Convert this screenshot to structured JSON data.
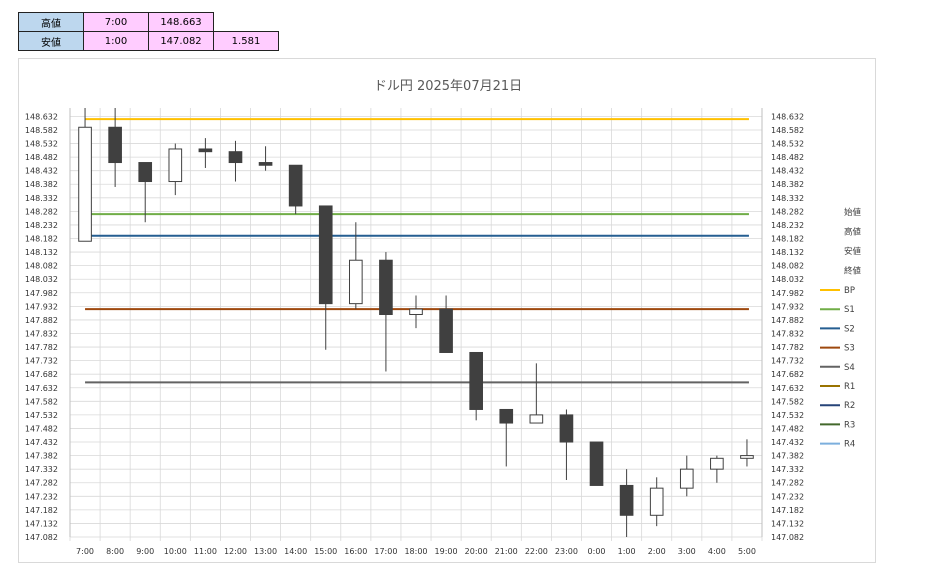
{
  "info_table": {
    "rows": [
      {
        "label": "高値",
        "time": "7:00",
        "price": "148.663",
        "extra": ""
      },
      {
        "label": "安値",
        "time": "1:00",
        "price": "147.082",
        "extra": "1.581"
      }
    ]
  },
  "chart_data": {
    "type": "candlestick",
    "title": "ドル円  2025年07月21日",
    "x": [
      "7:00",
      "8:00",
      "9:00",
      "10:00",
      "11:00",
      "12:00",
      "13:00",
      "14:00",
      "15:00",
      "16:00",
      "17:00",
      "18:00",
      "19:00",
      "20:00",
      "21:00",
      "22:00",
      "23:00",
      "0:00",
      "1:00",
      "2:00",
      "3:00",
      "4:00",
      "5:00"
    ],
    "ylim": [
      147.082,
      148.663
    ],
    "y_ticks": [
      "148.632",
      "148.582",
      "148.532",
      "148.482",
      "148.432",
      "148.382",
      "148.332",
      "148.282",
      "148.232",
      "148.182",
      "148.132",
      "148.082",
      "148.032",
      "147.982",
      "147.932",
      "147.882",
      "147.832",
      "147.782",
      "147.732",
      "147.682",
      "147.632",
      "147.582",
      "147.532",
      "147.482",
      "147.432",
      "147.382",
      "147.332",
      "147.282",
      "147.232",
      "147.182",
      "147.132",
      "147.082"
    ],
    "candles": [
      {
        "o": 148.172,
        "h": 148.663,
        "l": 148.172,
        "c": 148.592
      },
      {
        "o": 148.592,
        "h": 148.663,
        "l": 148.372,
        "c": 148.462
      },
      {
        "o": 148.462,
        "h": 148.462,
        "l": 148.242,
        "c": 148.392
      },
      {
        "o": 148.392,
        "h": 148.532,
        "l": 148.342,
        "c": 148.512
      },
      {
        "o": 148.512,
        "h": 148.552,
        "l": 148.442,
        "c": 148.502
      },
      {
        "o": 148.502,
        "h": 148.542,
        "l": 148.392,
        "c": 148.462
      },
      {
        "o": 148.462,
        "h": 148.522,
        "l": 148.432,
        "c": 148.452
      },
      {
        "o": 148.452,
        "h": 148.452,
        "l": 148.272,
        "c": 148.302
      },
      {
        "o": 148.302,
        "h": 148.302,
        "l": 147.772,
        "c": 147.942
      },
      {
        "o": 147.942,
        "h": 148.242,
        "l": 147.922,
        "c": 148.102
      },
      {
        "o": 148.102,
        "h": 148.132,
        "l": 147.692,
        "c": 147.902
      },
      {
        "o": 147.902,
        "h": 147.972,
        "l": 147.852,
        "c": 147.922
      },
      {
        "o": 147.922,
        "h": 147.972,
        "l": 147.762,
        "c": 147.762
      },
      {
        "o": 147.762,
        "h": 147.762,
        "l": 147.512,
        "c": 147.552
      },
      {
        "o": 147.552,
        "h": 147.552,
        "l": 147.342,
        "c": 147.502
      },
      {
        "o": 147.502,
        "h": 147.722,
        "l": 147.502,
        "c": 147.532
      },
      {
        "o": 147.532,
        "h": 147.552,
        "l": 147.292,
        "c": 147.432
      },
      {
        "o": 147.432,
        "h": 147.432,
        "l": 147.272,
        "c": 147.272
      },
      {
        "o": 147.272,
        "h": 147.332,
        "l": 147.082,
        "c": 147.162
      },
      {
        "o": 147.162,
        "h": 147.302,
        "l": 147.122,
        "c": 147.262
      },
      {
        "o": 147.262,
        "h": 147.382,
        "l": 147.232,
        "c": 147.332
      },
      {
        "o": 147.332,
        "h": 147.382,
        "l": 147.282,
        "c": 147.372
      },
      {
        "o": 147.372,
        "h": 147.442,
        "l": 147.342,
        "c": 147.382
      }
    ],
    "levels": [
      {
        "name": "BP",
        "value": 148.622,
        "color": "#ffc000"
      },
      {
        "name": "S1",
        "value": 148.272,
        "color": "#70ad47"
      },
      {
        "name": "S2",
        "value": 148.192,
        "color": "#255e91"
      },
      {
        "name": "S3",
        "value": 147.922,
        "color": "#9e480e"
      },
      {
        "name": "S4",
        "value": 147.652,
        "color": "#636363"
      },
      {
        "name": "R1",
        "value": null,
        "color": "#997300"
      },
      {
        "name": "R2",
        "value": null,
        "color": "#264478"
      },
      {
        "name": "R3",
        "value": null,
        "color": "#43682b"
      },
      {
        "name": "R4",
        "value": null,
        "color": "#7cafdd"
      }
    ],
    "legend": {
      "placement": "right",
      "text_entries": [
        "始値",
        "高値",
        "安値",
        "終値"
      ]
    },
    "colors": {
      "bull_fill": "#ffffff",
      "bear_fill": "#404040",
      "candle_stroke": "#404040",
      "grid": "#d9d9d9"
    },
    "grid": true
  }
}
